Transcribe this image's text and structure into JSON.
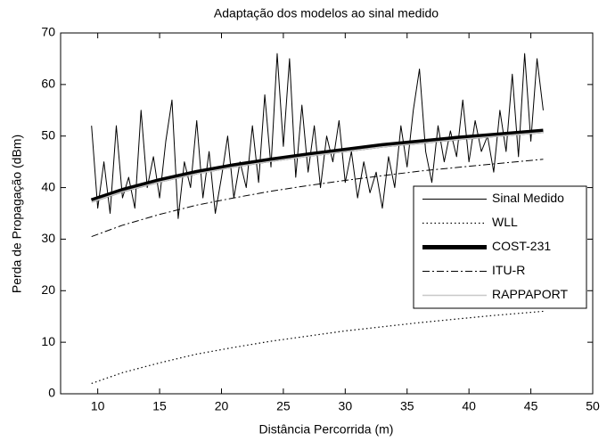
{
  "chart_data": {
    "type": "line",
    "title": "Adaptação dos modelos ao sinal medido",
    "xlabel": "Distância  Percorrida (m)",
    "ylabel": "Perda de Propagação (dBm)",
    "xlim": [
      7,
      50
    ],
    "xticks": [
      10,
      15,
      20,
      25,
      30,
      35,
      40,
      45,
      50
    ],
    "ylim": [
      0,
      70
    ],
    "yticks": [
      0,
      10,
      20,
      30,
      40,
      50,
      60,
      70
    ],
    "grid": false,
    "legend": "right",
    "series": [
      {
        "name": "Sinal Medido",
        "color": "#000000",
        "style": "solid",
        "linewidth": 1,
        "x": [
          9.5,
          10,
          10.5,
          11,
          11.5,
          12,
          12.5,
          13,
          13.5,
          14,
          14.5,
          15,
          15.5,
          16,
          16.5,
          17,
          17.5,
          18,
          18.5,
          19,
          19.5,
          20,
          20.5,
          21,
          21.5,
          22,
          22.5,
          23,
          23.5,
          24,
          24.5,
          25,
          25.5,
          26,
          26.5,
          27,
          27.5,
          28,
          28.5,
          29,
          29.5,
          30,
          30.5,
          31,
          31.5,
          32,
          32.5,
          33,
          33.5,
          34,
          34.5,
          35,
          35.5,
          36,
          36.5,
          37,
          37.5,
          38,
          38.5,
          39,
          39.5,
          40,
          40.5,
          41,
          41.5,
          42,
          42.5,
          43,
          43.5,
          44,
          44.5,
          45,
          45.5,
          46
        ],
        "values": [
          52,
          36,
          45,
          35,
          52,
          38,
          42,
          36,
          55,
          40,
          46,
          38,
          49,
          57,
          34,
          45,
          40,
          53,
          38,
          47,
          35,
          42,
          50,
          38,
          45,
          40,
          52,
          41,
          58,
          44,
          66,
          48,
          65,
          42,
          56,
          43,
          52,
          40,
          50,
          45,
          53,
          41,
          47,
          38,
          45,
          39,
          43,
          36,
          46,
          40,
          52,
          44,
          55,
          63,
          47,
          41,
          52,
          45,
          51,
          46,
          57,
          45,
          53,
          47,
          50,
          43,
          55,
          47,
          62,
          46,
          66,
          49,
          65,
          55
        ]
      },
      {
        "name": "WLL",
        "color": "#000000",
        "style": "dotted",
        "linewidth": 1.2,
        "x": [
          9.5,
          12,
          15,
          18,
          21,
          24,
          27,
          30,
          33,
          36,
          39,
          42,
          46
        ],
        "values": [
          2.0,
          4.1,
          6.0,
          7.7,
          9.0,
          10.2,
          11.2,
          12.2,
          13.0,
          13.8,
          14.5,
          15.2,
          16.0
        ]
      },
      {
        "name": "COST-231",
        "color": "#000000",
        "style": "solid",
        "linewidth": 5,
        "x": [
          9.5,
          12,
          15,
          18,
          21,
          24,
          27,
          30,
          33,
          36,
          39,
          42,
          46
        ],
        "values": [
          37.5,
          39.5,
          41.4,
          43.0,
          44.3,
          45.4,
          46.4,
          47.3,
          48.2,
          48.9,
          49.6,
          50.2,
          51.0
        ]
      },
      {
        "name": "ITU-R",
        "color": "#000000",
        "style": "dashdot",
        "linewidth": 1,
        "x": [
          9.5,
          12,
          15,
          18,
          21,
          24,
          27,
          30,
          33,
          36,
          39,
          42,
          46
        ],
        "values": [
          30.5,
          32.7,
          34.8,
          36.6,
          38.0,
          39.3,
          40.4,
          41.4,
          42.3,
          43.2,
          43.9,
          44.6,
          45.5
        ]
      },
      {
        "name": "RAPPAPORT",
        "color": "#c8c8c8",
        "style": "solid",
        "linewidth": 1.5,
        "x": [
          9.5,
          12,
          15,
          18,
          21,
          24,
          27,
          30,
          33,
          36,
          39,
          42,
          46
        ],
        "values": [
          37.2,
          39.2,
          41.1,
          42.7,
          44.0,
          45.1,
          46.1,
          47.0,
          47.9,
          48.6,
          49.3,
          49.9,
          50.7
        ]
      }
    ]
  }
}
